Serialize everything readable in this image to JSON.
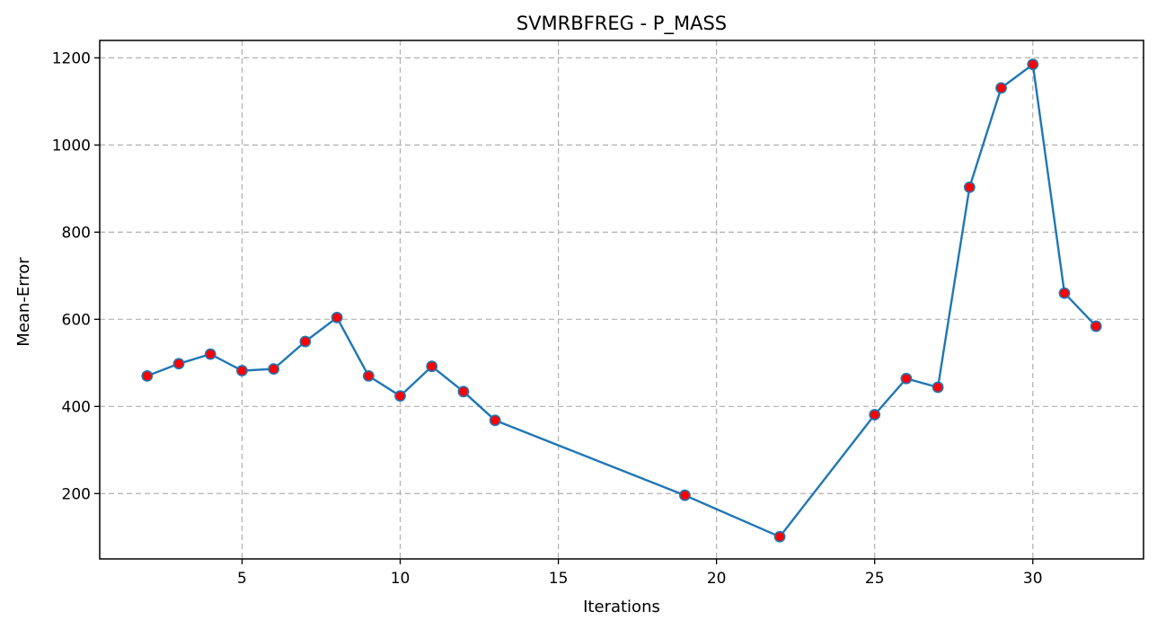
{
  "chart_data": {
    "type": "line",
    "title": "SVMRBFREG - P_MASS",
    "xlabel": "Iterations",
    "ylabel": "Mean-Error",
    "xlim": [
      0.5,
      33.5
    ],
    "ylim": [
      50,
      1240
    ],
    "xticks": [
      5,
      10,
      15,
      20,
      25,
      30
    ],
    "yticks": [
      200,
      400,
      600,
      800,
      1000,
      1200
    ],
    "grid": true,
    "series": [
      {
        "line_color": "#1f77b4",
        "marker_face_color": "#ff0000",
        "marker_edge_color": "#1f77b4",
        "x": [
          2,
          3,
          4,
          5,
          6,
          7,
          8,
          9,
          10,
          11,
          12,
          13,
          19,
          22,
          25,
          26,
          27,
          28,
          29,
          30,
          31,
          32
        ],
        "y": [
          470,
          498,
          520,
          482,
          486,
          549,
          604,
          470,
          424,
          492,
          434,
          368,
          196,
          101,
          381,
          464,
          444,
          903,
          1131,
          1185,
          660,
          584
        ]
      }
    ]
  }
}
